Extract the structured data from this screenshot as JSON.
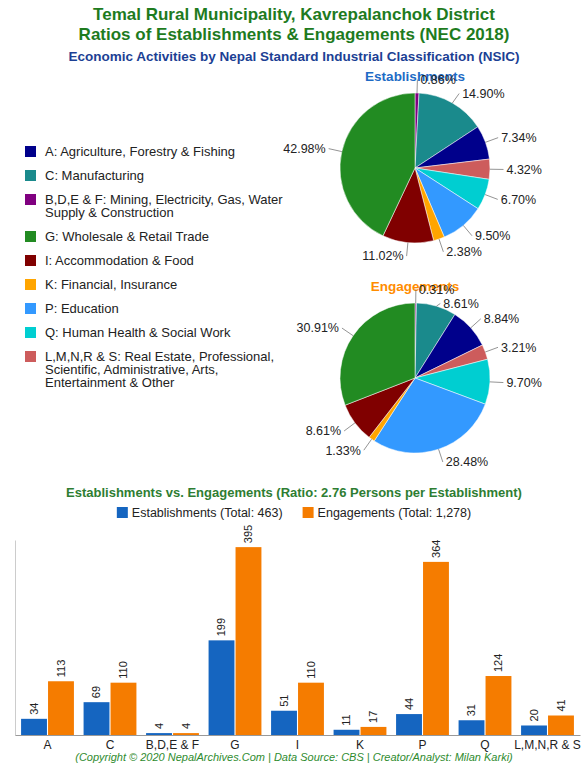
{
  "header": {
    "title": [
      "Temal Rural Municipality, Kavrepalanchok District",
      "Ratios of Establishments & Engagements (NEC 2018)"
    ],
    "subtitle": "Economic Activities by Nepal Standard Industrial Classification (NSIC)"
  },
  "legend": {
    "labels": [
      "A: Agriculture, Forestry & Fishing",
      "C: Manufacturing",
      "B,D,E & F: Mining, Electricity, Gas, Water Supply & Construction",
      "G: Wholesale & Retail Trade",
      "I: Accommodation & Food",
      "K: Financial, Insurance",
      "P: Education",
      "Q: Human Health & Social Work",
      "L,M,N,R & S: Real Estate, Professional, Scientific, Administrative, Arts, Entertainment & Other"
    ],
    "colors": [
      "#00008b",
      "#1a8a8c",
      "#800080",
      "#228b22",
      "#800000",
      "#ffa500",
      "#3399ff",
      "#00ced1",
      "#cd5c5c"
    ]
  },
  "chart_data": [
    {
      "type": "pie",
      "title": "Establishments",
      "data_labels": true,
      "values": [
        0.86,
        14.9,
        7.34,
        4.32,
        6.7,
        9.5,
        2.38,
        11.02,
        42.98
      ],
      "value_labels": [
        "0.86%",
        "14.90%",
        "7.34%",
        "4.32%",
        "6.70%",
        "9.50%",
        "2.38%",
        "11.02%",
        "42.98%"
      ],
      "colors": [
        "#800080",
        "#1a8a8c",
        "#00008b",
        "#cd5c5c",
        "#00ced1",
        "#3399ff",
        "#ffa500",
        "#800000",
        "#228b22"
      ]
    },
    {
      "type": "pie",
      "title": "Engagements",
      "data_labels": true,
      "values": [
        0.31,
        8.61,
        8.84,
        3.21,
        9.7,
        28.48,
        1.33,
        8.61,
        30.91
      ],
      "value_labels": [
        "0.31%",
        "8.61%",
        "8.84%",
        "3.21%",
        "9.70%",
        "28.48%",
        "1.33%",
        "8.61%",
        "30.91%"
      ],
      "colors": [
        "#800080",
        "#1a8a8c",
        "#00008b",
        "#cd5c5c",
        "#00ced1",
        "#3399ff",
        "#ffa500",
        "#800000",
        "#228b22"
      ]
    },
    {
      "type": "bar",
      "title": "Establishments vs. Engagements (Ratio: 2.76 Persons per Establishment)",
      "categories": [
        "A",
        "C",
        "B,D,E & F",
        "G",
        "I",
        "K",
        "P",
        "Q",
        "L,M,N,R & S"
      ],
      "series": [
        {
          "name": "Establishments (Total: 463)",
          "color": "#1565c0",
          "values": [
            34,
            69,
            4,
            199,
            51,
            11,
            44,
            31,
            20
          ]
        },
        {
          "name": "Engagements (Total: 1,278)",
          "color": "#f57c00",
          "values": [
            113,
            110,
            4,
            395,
            110,
            17,
            364,
            124,
            41
          ]
        }
      ],
      "ylim": [
        0,
        410
      ],
      "data_labels": true,
      "tick_labels": "x",
      "legend": "top"
    }
  ],
  "footer": "(Copyright © 2020 NepalArchives.Com | Data Source: CBS | Creator/Analyst: Milan Karki)"
}
